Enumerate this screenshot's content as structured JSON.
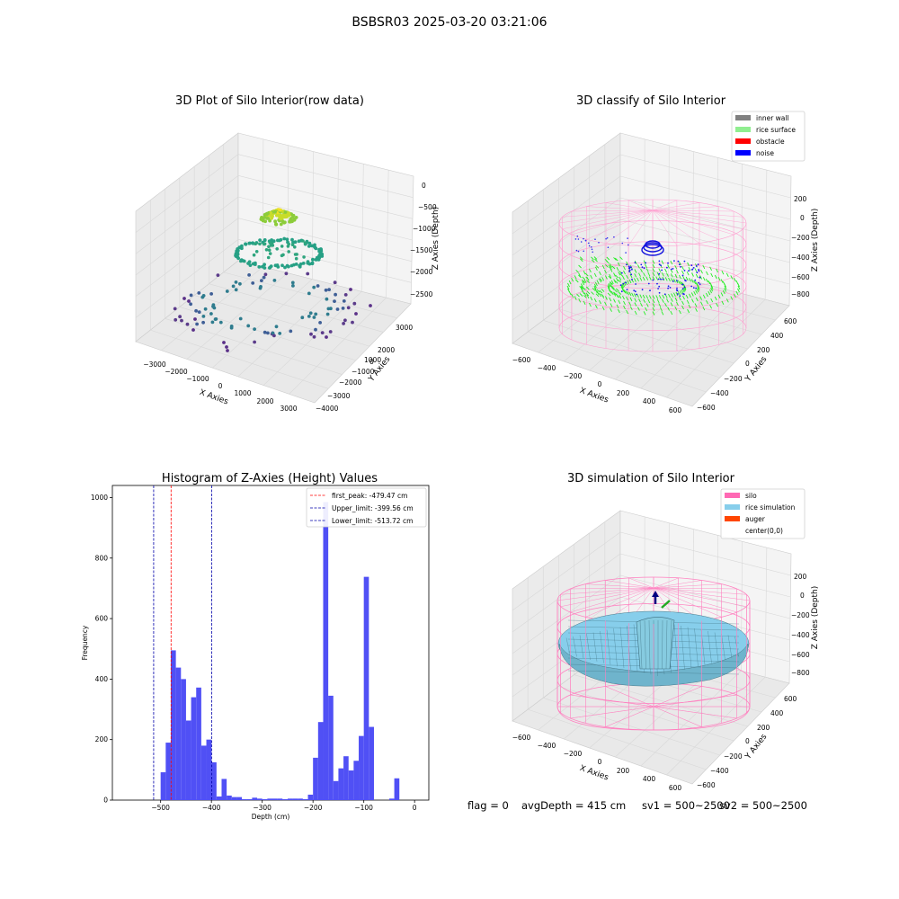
{
  "figure_title": "BSBSR03 2025-03-20 03:21:06",
  "colors": {
    "inner_wall": "#808080",
    "rice_surface": "#90ee90",
    "obstacle": "#ff0000",
    "noise": "#0000ff",
    "silo": "#ff69b4",
    "rice_simulation": "#87ceeb",
    "auger": "#ff4500",
    "hist_bar": "#5050f5",
    "peak_line": "#ff0000",
    "limit_line": "#0000aa"
  },
  "chart_data": [
    {
      "type": "scatter",
      "title": "3D Plot of Silo Interior(row data)",
      "xlabel": "X Axies",
      "ylabel": "Y Axies",
      "zlabel": "Z Axies (Depth)",
      "x_ticks": [
        "−3000",
        "−2000",
        "−1000",
        "0",
        "1000",
        "2000",
        "3000"
      ],
      "y_ticks": [
        "3000",
        "2000",
        "1000",
        "0",
        "−1000",
        "−2000",
        "−3000",
        "−4000"
      ],
      "z_ticks": [
        "0",
        "−500",
        "−1000",
        "−1500",
        "−2000",
        "−2500"
      ],
      "xlim": [
        -3500,
        3500
      ],
      "ylim": [
        -4000,
        3500
      ],
      "zlim": [
        -2800,
        200
      ]
    },
    {
      "type": "scatter",
      "title": "3D classify of Silo Interior",
      "xlabel": "X Axies",
      "ylabel": "Y Axies",
      "zlabel": "Z Axies (Depth)",
      "x_ticks": [
        "−600",
        "−400",
        "−200",
        "0",
        "200",
        "400",
        "600"
      ],
      "y_ticks": [
        "600",
        "400",
        "200",
        "0",
        "−200",
        "−400",
        "−600"
      ],
      "z_ticks": [
        "200",
        "0",
        "−200",
        "−400",
        "−600",
        "−800"
      ],
      "legend": [
        "inner wall",
        "rice surface",
        "obstacle",
        "noise"
      ],
      "legend_position": "top-right"
    },
    {
      "type": "bar",
      "title": "Histogram of Z-Axies (Height) Values",
      "xlabel": "Depth (cm)",
      "ylabel": "Frequency",
      "xlim": [
        -595,
        28
      ],
      "ylim": [
        0,
        1040
      ],
      "x_ticks": [
        -500,
        -400,
        -300,
        -200,
        -100,
        0
      ],
      "y_ticks": [
        0,
        200,
        400,
        600,
        800,
        1000
      ],
      "bin_width": 10,
      "bins": [
        [
          -510,
          0
        ],
        [
          -500,
          92
        ],
        [
          -490,
          190
        ],
        [
          -480,
          495
        ],
        [
          -470,
          438
        ],
        [
          -460,
          400
        ],
        [
          -450,
          263
        ],
        [
          -440,
          340
        ],
        [
          -430,
          372
        ],
        [
          -420,
          180
        ],
        [
          -410,
          200
        ],
        [
          -400,
          125
        ],
        [
          -390,
          12
        ],
        [
          -380,
          70
        ],
        [
          -370,
          15
        ],
        [
          -360,
          10
        ],
        [
          -350,
          10
        ],
        [
          -340,
          3
        ],
        [
          -330,
          3
        ],
        [
          -320,
          8
        ],
        [
          -310,
          5
        ],
        [
          -300,
          3
        ],
        [
          -290,
          5
        ],
        [
          -280,
          5
        ],
        [
          -270,
          5
        ],
        [
          -260,
          3
        ],
        [
          -250,
          5
        ],
        [
          -240,
          5
        ],
        [
          -230,
          5
        ],
        [
          -220,
          3
        ],
        [
          -210,
          18
        ],
        [
          -200,
          140
        ],
        [
          -190,
          258
        ],
        [
          -180,
          985
        ],
        [
          -170,
          345
        ],
        [
          -160,
          63
        ],
        [
          -150,
          105
        ],
        [
          -140,
          145
        ],
        [
          -130,
          98
        ],
        [
          -120,
          130
        ],
        [
          -110,
          212
        ],
        [
          -100,
          738
        ],
        [
          -90,
          242
        ],
        [
          -80,
          0
        ],
        [
          -70,
          0
        ],
        [
          -60,
          0
        ],
        [
          -50,
          5
        ],
        [
          -40,
          72
        ]
      ],
      "vlines": [
        {
          "label": "first_peak: -479.47 cm",
          "x": -479.47,
          "color": "#ff0000"
        },
        {
          "label": "Upper_limit: -399.56 cm",
          "x": -399.56,
          "color": "#0000aa"
        },
        {
          "label": "Lower_limit: -513.72 cm",
          "x": -513.72,
          "color": "#0000aa"
        }
      ],
      "legend_position": "top-right"
    },
    {
      "type": "surface",
      "title": "3D simulation of Silo Interior",
      "xlabel": "X Axies",
      "ylabel": "Y Axies",
      "zlabel": "Z Axies (Depth)",
      "x_ticks": [
        "−600",
        "−400",
        "−200",
        "0",
        "200",
        "400",
        "600"
      ],
      "y_ticks": [
        "600",
        "400",
        "200",
        "0",
        "−200",
        "−400",
        "−600"
      ],
      "z_ticks": [
        "200",
        "0",
        "−200",
        "−400",
        "−600",
        "−800"
      ],
      "legend": [
        "silo",
        "rice simulation",
        "auger",
        "center(0,0)"
      ],
      "legend_position": "top-right"
    }
  ],
  "status": {
    "flag": "flag = 0",
    "avg_depth": "avgDepth = 415 cm",
    "sv1": "sv1 = 500~2500",
    "sv2": "sv2 = 500~2500"
  }
}
